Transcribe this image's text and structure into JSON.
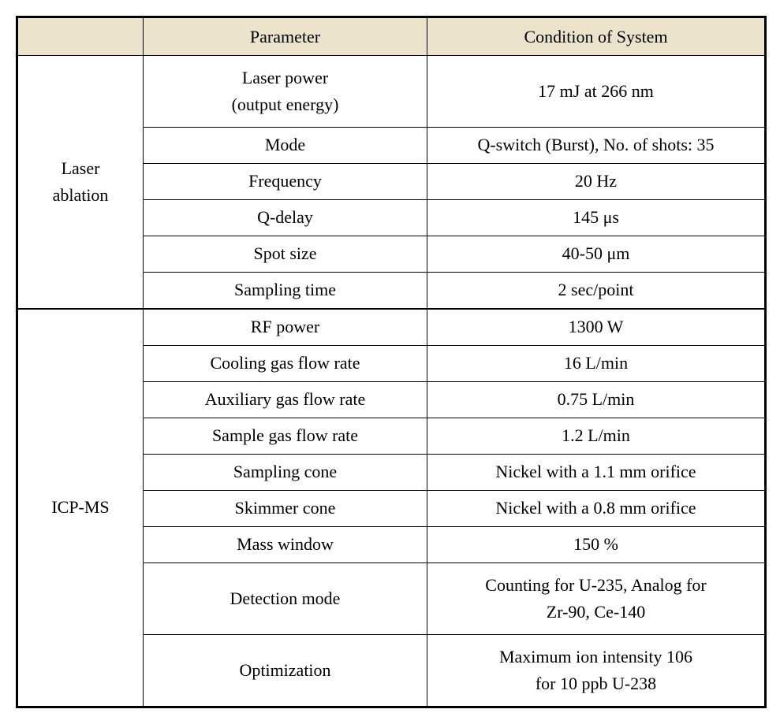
{
  "headers": {
    "col0": "",
    "col1": "Parameter",
    "col2": "Condition of System"
  },
  "groups": [
    {
      "label": "Laser\nablation",
      "rows": [
        {
          "param": "Laser power\n(output energy)",
          "cond": "17 mJ at 266 nm",
          "tall": true
        },
        {
          "param": "Mode",
          "cond": "Q-switch (Burst), No. of shots: 35"
        },
        {
          "param": "Frequency",
          "cond": "20 Hz"
        },
        {
          "param": "Q-delay",
          "cond": "145 μs"
        },
        {
          "param": "Spot size",
          "cond": "40-50 μm"
        },
        {
          "param": "Sampling time",
          "cond": "2 sec/point"
        }
      ]
    },
    {
      "label": "ICP-MS",
      "rows": [
        {
          "param": "RF power",
          "cond": "1300 W"
        },
        {
          "param": "Cooling gas flow rate",
          "cond": "16 L/min"
        },
        {
          "param": "Auxiliary gas flow rate",
          "cond": "0.75 L/min"
        },
        {
          "param": "Sample gas flow rate",
          "cond": "1.2 L/min"
        },
        {
          "param": "Sampling cone",
          "cond": "Nickel with a 1.1 mm orifice"
        },
        {
          "param": "Skimmer cone",
          "cond": "Nickel with a 0.8 mm orifice"
        },
        {
          "param": "Mass window",
          "cond": "150 %"
        },
        {
          "param": "Detection mode",
          "cond": "Counting for U-235, Analog for\nZr-90, Ce-140",
          "tall": true
        },
        {
          "param": "Optimization",
          "cond": "Maximum ion intensity 106\nfor 10 ppb U-238",
          "tall": true
        }
      ]
    }
  ]
}
